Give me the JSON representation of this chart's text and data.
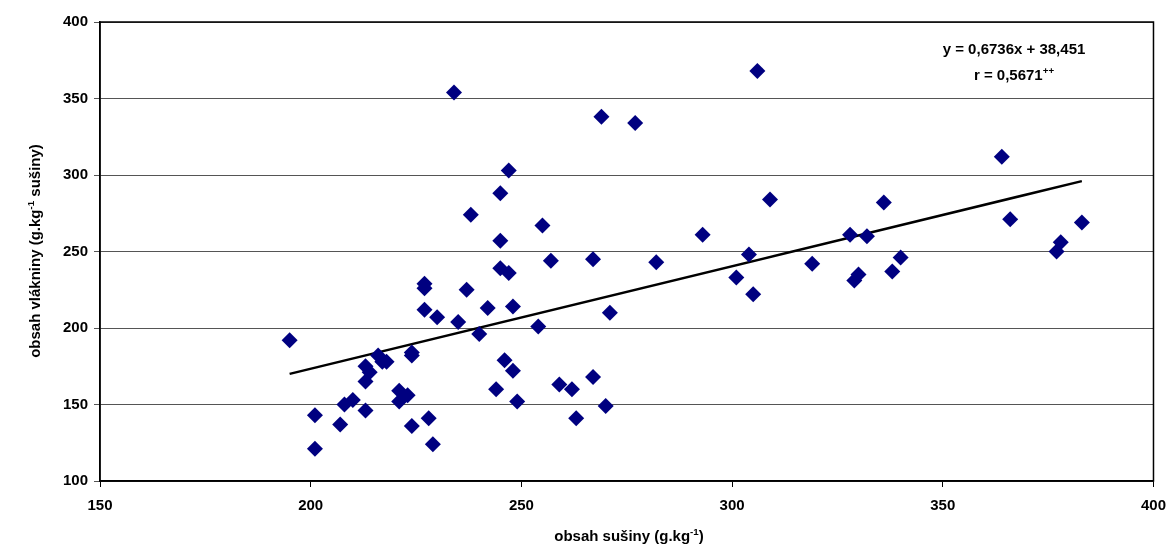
{
  "chart_data": {
    "type": "scatter",
    "xlabel": "obsah sušiny (g.kg$^{-1}$)",
    "ylabel": "obsah vlákniny (g.kg$^{-1}$ sušiny)",
    "annotations": [
      "y = 0,6736x + 38,451",
      "r = 0,5671$^{++}$"
    ],
    "xlim": [
      150,
      400
    ],
    "xticks": [
      150,
      200,
      250,
      300,
      350,
      400
    ],
    "ylim": [
      100,
      400
    ],
    "yticks": [
      100,
      150,
      200,
      250,
      300,
      350,
      400
    ],
    "grid": "y",
    "legend": false,
    "marker": "diamond",
    "series": [
      {
        "color": "#000080",
        "x": [
          195,
          201,
          201,
          207,
          208,
          210,
          213,
          213,
          213,
          214,
          216,
          217,
          218,
          221,
          221,
          223,
          224,
          224,
          224,
          227,
          227,
          227,
          230,
          228,
          229,
          234,
          235,
          237,
          238,
          240,
          242,
          244,
          245,
          245,
          245,
          246,
          248,
          247,
          247,
          248,
          249,
          254,
          255,
          257,
          259,
          262,
          263,
          269,
          267,
          267,
          270,
          271,
          277,
          282,
          293,
          301,
          304,
          305,
          306,
          309,
          319,
          328,
          329,
          330,
          332,
          336,
          338,
          340,
          364,
          366,
          377,
          378,
          383
        ],
        "values": [
          192,
          143,
          121,
          137,
          150,
          153,
          146,
          165,
          175,
          171,
          182,
          178,
          178,
          159,
          152,
          156,
          184,
          182,
          136,
          229,
          226,
          212,
          207,
          141,
          124,
          354,
          204,
          225,
          274,
          196,
          213,
          160,
          239,
          288,
          257,
          179,
          172,
          303,
          236,
          214,
          152,
          201,
          267,
          244,
          163,
          160,
          141,
          338,
          245,
          168,
          149,
          210,
          334,
          243,
          261,
          233,
          248,
          222,
          368,
          284,
          242,
          261,
          231,
          235,
          260,
          282,
          237,
          246,
          312,
          271,
          250,
          256,
          269
        ]
      },
      {
        "type": "line",
        "marker": "none",
        "color": "#000000",
        "x": [
          195,
          383
        ],
        "values": [
          170,
          296
        ]
      }
    ]
  }
}
